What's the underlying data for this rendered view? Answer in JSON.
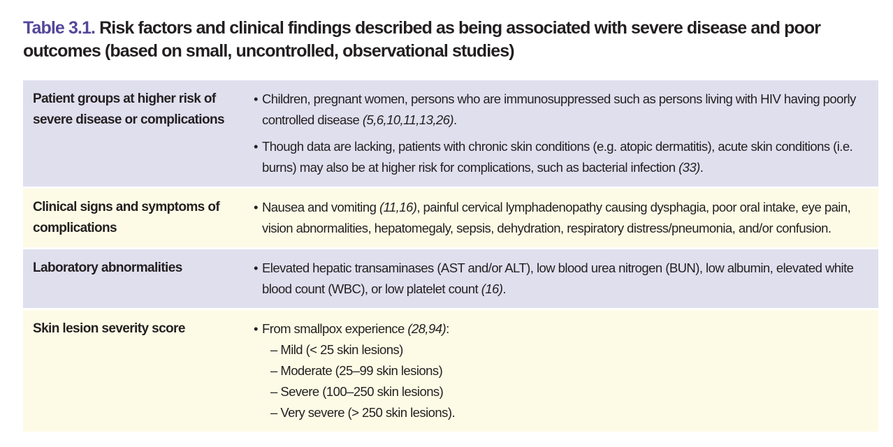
{
  "title": {
    "number": "Table 3.1.",
    "text": "Risk factors and clinical findings described as being associated with severe disease and poor outcomes (based on small, uncontrolled, observational studies)"
  },
  "rows": [
    {
      "label": "Patient groups at higher risk of severe disease or complications",
      "bullets": [
        {
          "text": "Children, pregnant women, persons who are immunosuppressed such as persons living with HIV having poorly controlled disease ",
          "ref": "(5,6,10,11,13,26)",
          "end": "."
        },
        {
          "text": "Though data are lacking, patients with chronic skin conditions (e.g. atopic dermatitis), acute skin conditions (i.e. burns) may also be at higher risk for complications, such as bacterial infection ",
          "ref": "(33)",
          "end": "."
        }
      ]
    },
    {
      "label": "Clinical signs and symptoms of complications",
      "bullets": [
        {
          "text": "Nausea and vomiting ",
          "ref": "(11,16)",
          "end": ", painful cervical lymphadenopathy causing dysphagia, poor oral intake, eye pain, vision abnormalities, hepatomegaly, sepsis, dehydration, respiratory distress/pneumonia, and/or confusion."
        }
      ]
    },
    {
      "label": "Laboratory abnormalities",
      "bullets": [
        {
          "text": "Elevated hepatic transaminases (AST and/or ALT), low blood urea nitrogen (BUN), low albumin, elevated white blood count (WBC), or low platelet count ",
          "ref": "(16)",
          "end": "."
        }
      ]
    },
    {
      "label": "Skin lesion severity score",
      "bullets": [
        {
          "text": "From smallpox experience ",
          "ref": "(28,94)",
          "end": ":"
        }
      ],
      "subitems": [
        "– Mild (< 25 skin lesions)",
        "– Moderate (25–99 skin lesions)",
        "– Severe (100–250 skin lesions)",
        "– Very severe (> 250 skin lesions)."
      ]
    }
  ]
}
